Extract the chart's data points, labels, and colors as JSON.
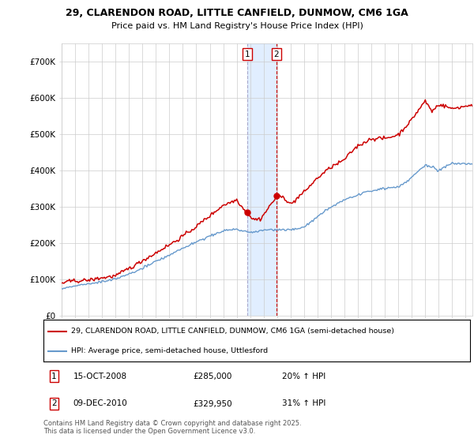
{
  "title1": "29, CLARENDON ROAD, LITTLE CANFIELD, DUNMOW, CM6 1GA",
  "title2": "Price paid vs. HM Land Registry's House Price Index (HPI)",
  "legend_line1": "29, CLARENDON ROAD, LITTLE CANFIELD, DUNMOW, CM6 1GA (semi-detached house)",
  "legend_line2": "HPI: Average price, semi-detached house, Uttlesford",
  "footnote": "Contains HM Land Registry data © Crown copyright and database right 2025.\nThis data is licensed under the Open Government Licence v3.0.",
  "annotation1_label": "1",
  "annotation1_date": "15-OCT-2008",
  "annotation1_price": "£285,000",
  "annotation1_hpi": "20% ↑ HPI",
  "annotation2_label": "2",
  "annotation2_date": "09-DEC-2010",
  "annotation2_price": "£329,950",
  "annotation2_hpi": "31% ↑ HPI",
  "red_color": "#cc0000",
  "blue_color": "#6699cc",
  "highlight_color": "#daeaff",
  "background_color": "#ffffff",
  "grid_color": "#cccccc",
  "ylim": [
    0,
    750000
  ],
  "yticks": [
    0,
    100000,
    200000,
    300000,
    400000,
    500000,
    600000,
    700000
  ],
  "ytick_labels": [
    "£0",
    "£100K",
    "£200K",
    "£300K",
    "£400K",
    "£500K",
    "£600K",
    "£700K"
  ],
  "marker1_x": 2008.79,
  "marker1_y": 285000,
  "marker2_x": 2010.94,
  "marker2_y": 329950,
  "shade_x1": 2008.79,
  "shade_x2": 2010.94,
  "vline1_color": "#aaaacc",
  "vline2_color": "#cc0000",
  "xmin": 1995,
  "xmax": 2025.5
}
